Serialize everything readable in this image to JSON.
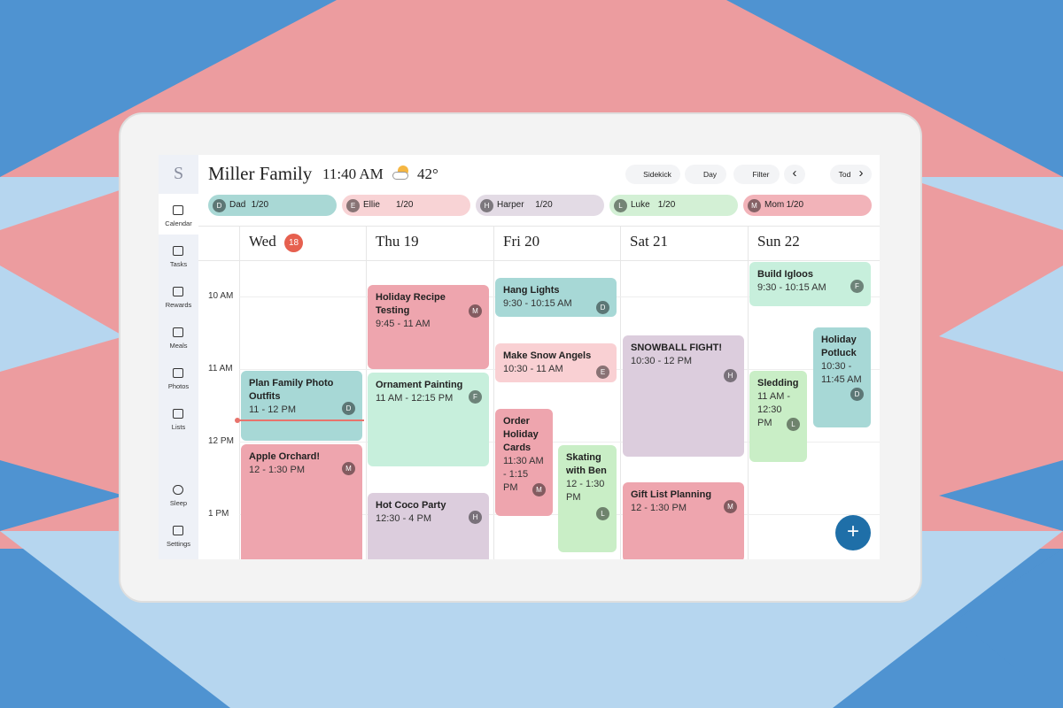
{
  "header": {
    "title": "Miller Family",
    "time": "11:40 AM",
    "temperature": "42°"
  },
  "toolbar": [
    "Sidekick",
    "Day",
    "Filter",
    "Today"
  ],
  "profiles": [
    {
      "initial": "D",
      "name": "Dad",
      "progress": "1/20",
      "color": "#a9d8d5"
    },
    {
      "initial": "E",
      "name": "Ellie",
      "progress": "1/20",
      "color": "#f8d3d5"
    },
    {
      "initial": "H",
      "name": "Harper",
      "progress": "1/20",
      "color": "#e3dbe5"
    },
    {
      "initial": "L",
      "name": "Luke",
      "progress": "1/20",
      "color": "#d3f0d5"
    },
    {
      "initial": "M",
      "name": "Mom",
      "progress": "1/20",
      "color": "#f2b3b9"
    }
  ],
  "sidebar": {
    "logo": "S",
    "items": [
      "Calendar",
      "Tasks",
      "Rewards",
      "Meals",
      "Photos",
      "Lists",
      "Sleep",
      "Settings"
    ]
  },
  "days": [
    {
      "name": "Wed",
      "badge": "18"
    },
    {
      "name": "Thu 19"
    },
    {
      "name": "Fri 20"
    },
    {
      "name": "Sat 21"
    },
    {
      "name": "Sun 22"
    }
  ],
  "times": [
    "10 AM",
    "11 AM",
    "12 PM",
    "1 PM"
  ],
  "events": [
    {
      "title": "Plan Family Photo Outfits",
      "time": "11 - 12 PM",
      "initial": "D",
      "color": "#a7d8d6"
    },
    {
      "title": "Apple Orchard!",
      "time": "12 - 1:30 PM",
      "initial": "M",
      "color": "#eea5ae"
    },
    {
      "title": "Holiday Recipe Testing",
      "time": "9:45 - 11 AM",
      "initial": "M",
      "color": "#eea5ae"
    },
    {
      "title": "Ornament Painting",
      "time": "11 AM - 12:15 PM",
      "initial": "F",
      "color": "#c7efdc"
    },
    {
      "title": "Hot Coco Party",
      "time": "12:30 - 4 PM",
      "initial": "H",
      "color": "#dccddd"
    },
    {
      "title": "Hang Lights",
      "time": "9:30 - 10:15 AM",
      "initial": "D",
      "color": "#a7d8d6"
    },
    {
      "title": "Make Snow Angels",
      "time": "10:30 - 11 AM",
      "initial": "E",
      "color": "#f9d0d3"
    },
    {
      "title": "Order Holiday Cards",
      "time": "11:30 AM - 1:15 PM",
      "initial": "M",
      "color": "#eea5ae"
    },
    {
      "title": "Skating with Ben",
      "time": "12 - 1:30 PM",
      "initial": "L",
      "color": "#c9eec6"
    },
    {
      "title": "SNOWBALL FIGHT!",
      "time": "10:30 - 12 PM",
      "initial": "H",
      "color": "#dccddd"
    },
    {
      "title": "Gift List Planning",
      "time": "12 - 1:30 PM",
      "initial": "M",
      "color": "#eea5ae"
    },
    {
      "title": "Build Igloos",
      "time": "9:30 - 10:15 AM",
      "initial": "F",
      "color": "#c7efdc"
    },
    {
      "title": "Holiday Potluck",
      "time": "10:30 - 11:45 AM",
      "initial": "D",
      "color": "#a7d8d6"
    },
    {
      "title": "Sledding",
      "time": "11 AM - 12:30 PM",
      "initial": "L",
      "color": "#c9eec6"
    }
  ]
}
